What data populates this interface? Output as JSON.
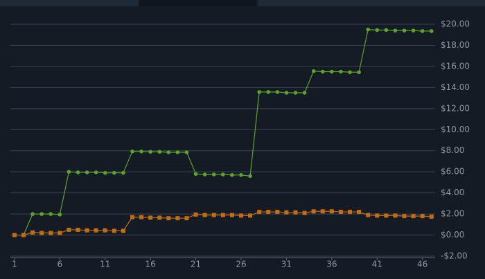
{
  "chart_data": {
    "type": "line",
    "x": [
      1,
      2,
      3,
      4,
      5,
      6,
      7,
      8,
      9,
      10,
      11,
      12,
      13,
      14,
      15,
      16,
      17,
      18,
      19,
      20,
      21,
      22,
      23,
      24,
      25,
      26,
      27,
      28,
      29,
      30,
      31,
      32,
      33,
      34,
      35,
      36,
      37,
      38,
      39,
      40,
      41,
      42,
      43,
      44,
      45,
      46,
      47
    ],
    "series": [
      {
        "color": "#5ba32b",
        "marker": "circle",
        "values": [
          0,
          0,
          2.0,
          2.0,
          2.0,
          1.95,
          6.0,
          5.95,
          5.95,
          5.95,
          5.9,
          5.9,
          5.9,
          7.93,
          7.93,
          7.9,
          7.9,
          7.85,
          7.85,
          7.85,
          5.8,
          5.75,
          5.75,
          5.75,
          5.7,
          5.7,
          5.6,
          13.57,
          13.57,
          13.57,
          13.5,
          13.5,
          13.5,
          15.55,
          15.5,
          15.5,
          15.5,
          15.45,
          15.45,
          19.5,
          19.45,
          19.45,
          19.4,
          19.4,
          19.4,
          19.35,
          19.35
        ]
      },
      {
        "color": "#c26d14",
        "marker": "square",
        "values": [
          0,
          0,
          0.25,
          0.2,
          0.2,
          0.2,
          0.5,
          0.5,
          0.45,
          0.45,
          0.45,
          0.4,
          0.4,
          1.7,
          1.7,
          1.65,
          1.65,
          1.6,
          1.6,
          1.6,
          1.95,
          1.9,
          1.9,
          1.9,
          1.9,
          1.85,
          1.85,
          2.2,
          2.2,
          2.2,
          2.15,
          2.15,
          2.1,
          2.25,
          2.25,
          2.25,
          2.2,
          2.2,
          2.2,
          1.9,
          1.85,
          1.85,
          1.85,
          1.8,
          1.8,
          1.8,
          1.75
        ]
      }
    ],
    "xlim": [
      0.55,
      47.4
    ],
    "xticks": [
      1,
      6,
      11,
      16,
      21,
      26,
      31,
      36,
      41,
      46
    ],
    "ylim": [
      -2,
      20
    ],
    "yticks": [
      {
        "value": -2,
        "label": "-$2.00"
      },
      {
        "value": 0,
        "label": "$0.00"
      },
      {
        "value": 2,
        "label": "$2.00"
      },
      {
        "value": 4,
        "label": "$4.00"
      },
      {
        "value": 6,
        "label": "$6.00"
      },
      {
        "value": 8,
        "label": "$8.00"
      },
      {
        "value": 10,
        "label": "$10.00"
      },
      {
        "value": 12,
        "label": "$12.00"
      },
      {
        "value": 14,
        "label": "$14.00"
      },
      {
        "value": 16,
        "label": "$16.00"
      },
      {
        "value": 18,
        "label": "$18.00"
      },
      {
        "value": 20,
        "label": "$20.00"
      }
    ],
    "grid": true
  }
}
